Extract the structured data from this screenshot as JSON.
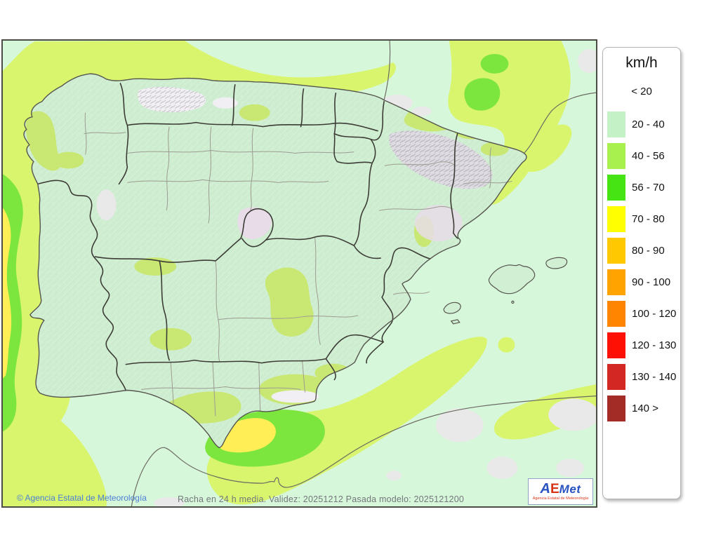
{
  "legend": {
    "title": "km/h",
    "no_swatch_label": "< 20",
    "items": [
      {
        "label": "20 - 40",
        "color": "#c5f1c7"
      },
      {
        "label": "40 - 56",
        "color": "#a8f04e"
      },
      {
        "label": "56 - 70",
        "color": "#47e414"
      },
      {
        "label": "70 - 80",
        "color": "#ffff00"
      },
      {
        "label": "80 - 90",
        "color": "#ffc800"
      },
      {
        "label": "90 - 100",
        "color": "#ffa300"
      },
      {
        "label": "100 - 120",
        "color": "#ff8400"
      },
      {
        "label": "120 - 130",
        "color": "#fe1005"
      },
      {
        "label": "130 - 140",
        "color": "#d32723"
      },
      {
        "label": "140 >",
        "color": "#a32d26"
      }
    ]
  },
  "footer": {
    "copyright": "© Agencia Estatal de Meteorología",
    "caption": "Racha en 24 h media. Validez: 20251212 Pasada modelo: 2025121200"
  },
  "logo": {
    "part_a": "A",
    "part_e": "E",
    "part_met": "Met",
    "tagline": "Agencia Estatal de Meteorología"
  },
  "map": {
    "colors": {
      "sea": "#d7f7da",
      "land": "#d1efd3",
      "band_40_56_sea": "#d8f56d",
      "band_40_56_land": "#c9e873",
      "band_56_70": "#7ce63e",
      "band_70_80": "#ffee55",
      "calm_under_20": "#e9e9e9",
      "terrain_white": "#f1eff3",
      "terrain_gray": "#dedbe2",
      "terrain_pink": "#e8dce8",
      "coastline": "#55554e",
      "border_thick": "#3c3c36",
      "border_thin": "#9c9c92",
      "foreign_coast": "#6b6b63"
    }
  }
}
